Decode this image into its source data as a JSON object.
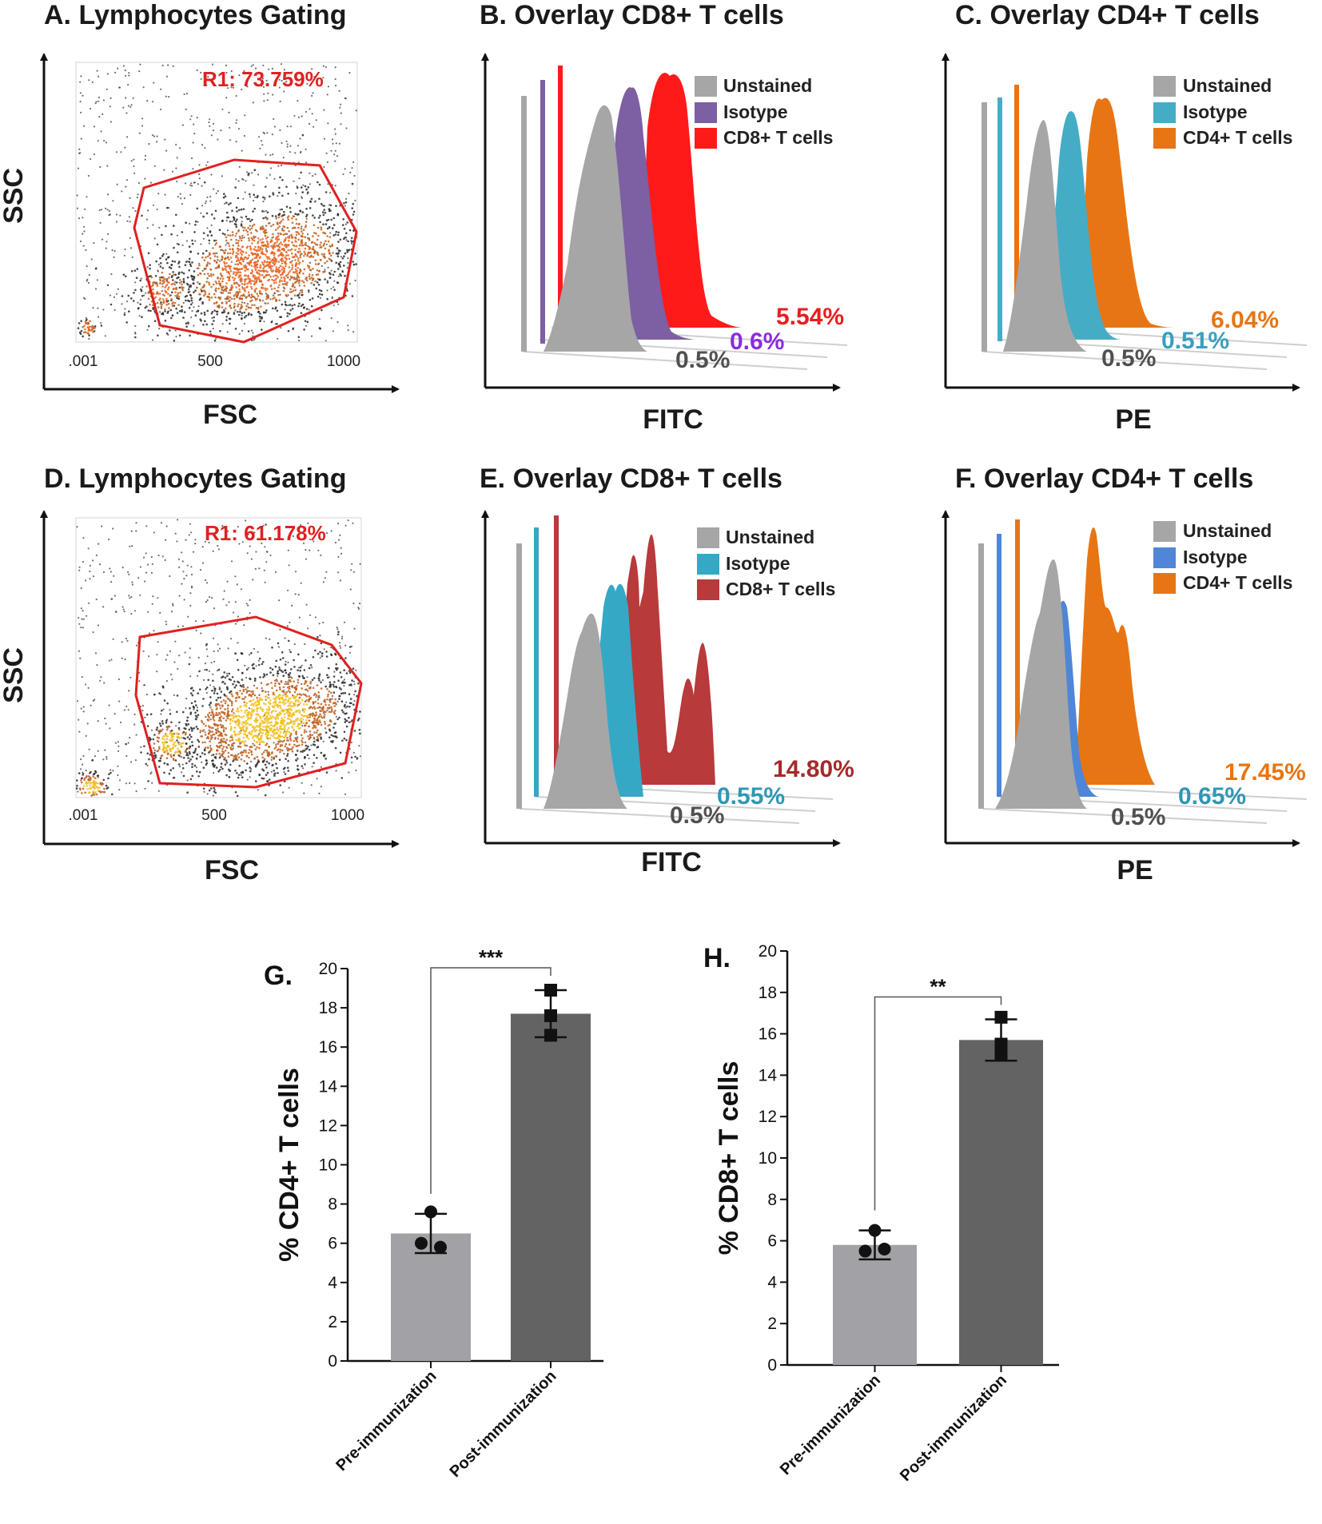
{
  "panels": {
    "A": {
      "title": "A. Lymphocytes  Gating",
      "gate_label": "R1: 73.759%",
      "xlabel": "FSC",
      "ylabel": "SSC",
      "ticks": [
        ".001",
        "500",
        "1000"
      ]
    },
    "B": {
      "title": "B. Overlay CD8+ T cells",
      "xlabel": "FITC",
      "legend": [
        "Unstained",
        "Isotype",
        "CD8+ T cells"
      ],
      "colors": [
        "#a6a6a6",
        "#7d5fa3",
        "#ff1a1a"
      ],
      "percents": [
        "0.5%",
        "0.6%",
        "5.54%"
      ]
    },
    "C": {
      "title": "C. Overlay CD4+ T cells",
      "xlabel": "PE",
      "legend": [
        "Unstained",
        "Isotype",
        "CD4+ T cells"
      ],
      "colors": [
        "#a6a6a6",
        "#45acc6",
        "#e87513"
      ],
      "percents": [
        "0.5%",
        "0.51%",
        "6.04%"
      ]
    },
    "D": {
      "title": "D. Lymphocytes  Gating",
      "gate_label": "R1: 61.178%",
      "xlabel": "FSC",
      "ylabel": "SSC",
      "ticks": [
        ".001",
        "500",
        "1000"
      ]
    },
    "E": {
      "title": "E. Overlay CD8+ T cells",
      "xlabel": "FITC",
      "legend": [
        "Unstained",
        "Isotype",
        "CD8+ T cells"
      ],
      "colors": [
        "#a6a6a6",
        "#35a8c6",
        "#b83a3a"
      ],
      "percents": [
        "0.5%",
        "0.55%",
        "14.80%"
      ]
    },
    "F": {
      "title": "F. Overlay CD4+ T cells",
      "xlabel": "PE",
      "legend": [
        "Unstained",
        "Isotype",
        "CD4+ T cells"
      ],
      "colors": [
        "#a6a6a6",
        "#4f86d6",
        "#e87513"
      ],
      "percents": [
        "0.5%",
        "0.65%",
        "17.45%"
      ]
    }
  },
  "chart_data": [
    {
      "type": "bar",
      "letter": "G.",
      "categories": [
        "Pre-immunization",
        "Post-immunization"
      ],
      "values": [
        6.5,
        17.7
      ],
      "error_low": [
        5.5,
        16.5
      ],
      "error_high": [
        7.5,
        18.9
      ],
      "points": [
        [
          7.6,
          6.0,
          5.8
        ],
        [
          18.9,
          17.6,
          16.6
        ]
      ],
      "ylabel": "% CD4+ T cells",
      "ylim": [
        0,
        20
      ],
      "yticks": [
        0,
        2,
        4,
        6,
        8,
        10,
        12,
        14,
        16,
        18,
        20
      ],
      "significance": "***",
      "bar_colors": [
        "#a2a2a6",
        "#636363"
      ]
    },
    {
      "type": "bar",
      "letter": "H.",
      "categories": [
        "Pre-immunization",
        "Post-immunization"
      ],
      "values": [
        5.8,
        15.7
      ],
      "error_low": [
        5.1,
        14.7
      ],
      "error_high": [
        6.5,
        16.7
      ],
      "points": [
        [
          6.5,
          5.5,
          5.6
        ],
        [
          16.8,
          15.5,
          15.0
        ]
      ],
      "ylabel": "% CD8+ T cells",
      "ylim": [
        0,
        20
      ],
      "yticks": [
        0,
        2,
        4,
        6,
        8,
        10,
        12,
        14,
        16,
        18,
        20
      ],
      "significance": "**",
      "bar_colors": [
        "#a2a2a6",
        "#636363"
      ]
    }
  ]
}
